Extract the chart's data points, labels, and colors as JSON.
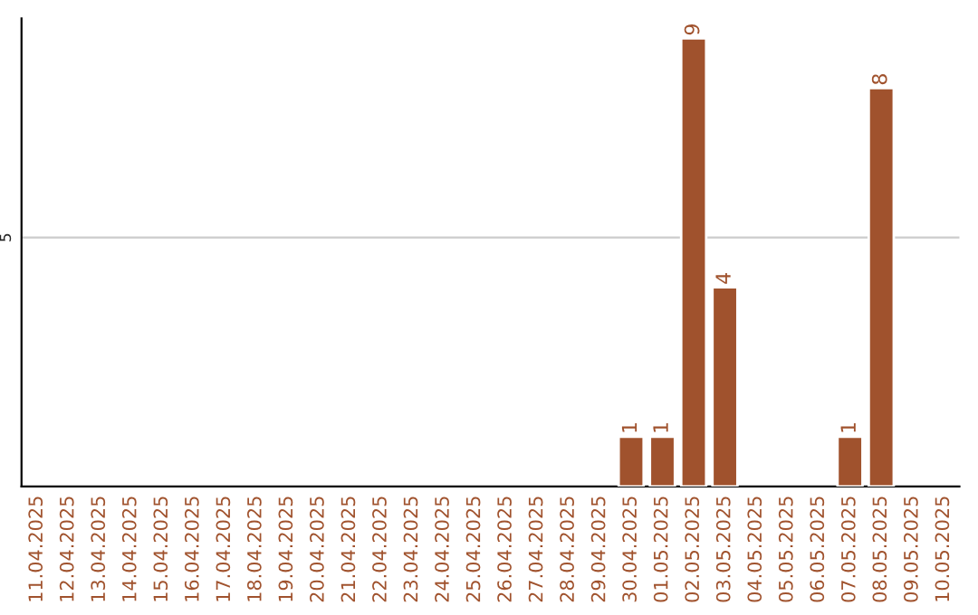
{
  "chart_data": {
    "type": "bar",
    "categories": [
      "11.04.2025",
      "12.04.2025",
      "13.04.2025",
      "14.04.2025",
      "15.04.2025",
      "16.04.2025",
      "17.04.2025",
      "18.04.2025",
      "19.04.2025",
      "20.04.2025",
      "21.04.2025",
      "22.04.2025",
      "23.04.2025",
      "24.04.2025",
      "25.04.2025",
      "26.04.2025",
      "27.04.2025",
      "28.04.2025",
      "29.04.2025",
      "30.04.2025",
      "01.05.2025",
      "02.05.2025",
      "03.05.2025",
      "04.05.2025",
      "05.05.2025",
      "06.05.2025",
      "07.05.2025",
      "08.05.2025",
      "09.05.2025",
      "10.05.2025"
    ],
    "values": [
      null,
      null,
      null,
      null,
      null,
      null,
      null,
      null,
      null,
      null,
      null,
      null,
      null,
      null,
      null,
      null,
      null,
      null,
      null,
      1,
      1,
      9,
      4,
      null,
      null,
      null,
      1,
      8,
      null,
      null
    ],
    "value_labels": [
      null,
      null,
      null,
      null,
      null,
      null,
      null,
      null,
      null,
      null,
      null,
      null,
      null,
      null,
      null,
      null,
      null,
      null,
      null,
      "1",
      "1",
      "9",
      "4",
      null,
      null,
      null,
      "1",
      "8",
      null,
      null
    ],
    "color": "#a0522d",
    "ylim": [
      0,
      9.4
    ],
    "ref_lines": [
      {
        "axis": "y",
        "value": 5,
        "label": "5",
        "color": "#cccccc"
      }
    ]
  }
}
